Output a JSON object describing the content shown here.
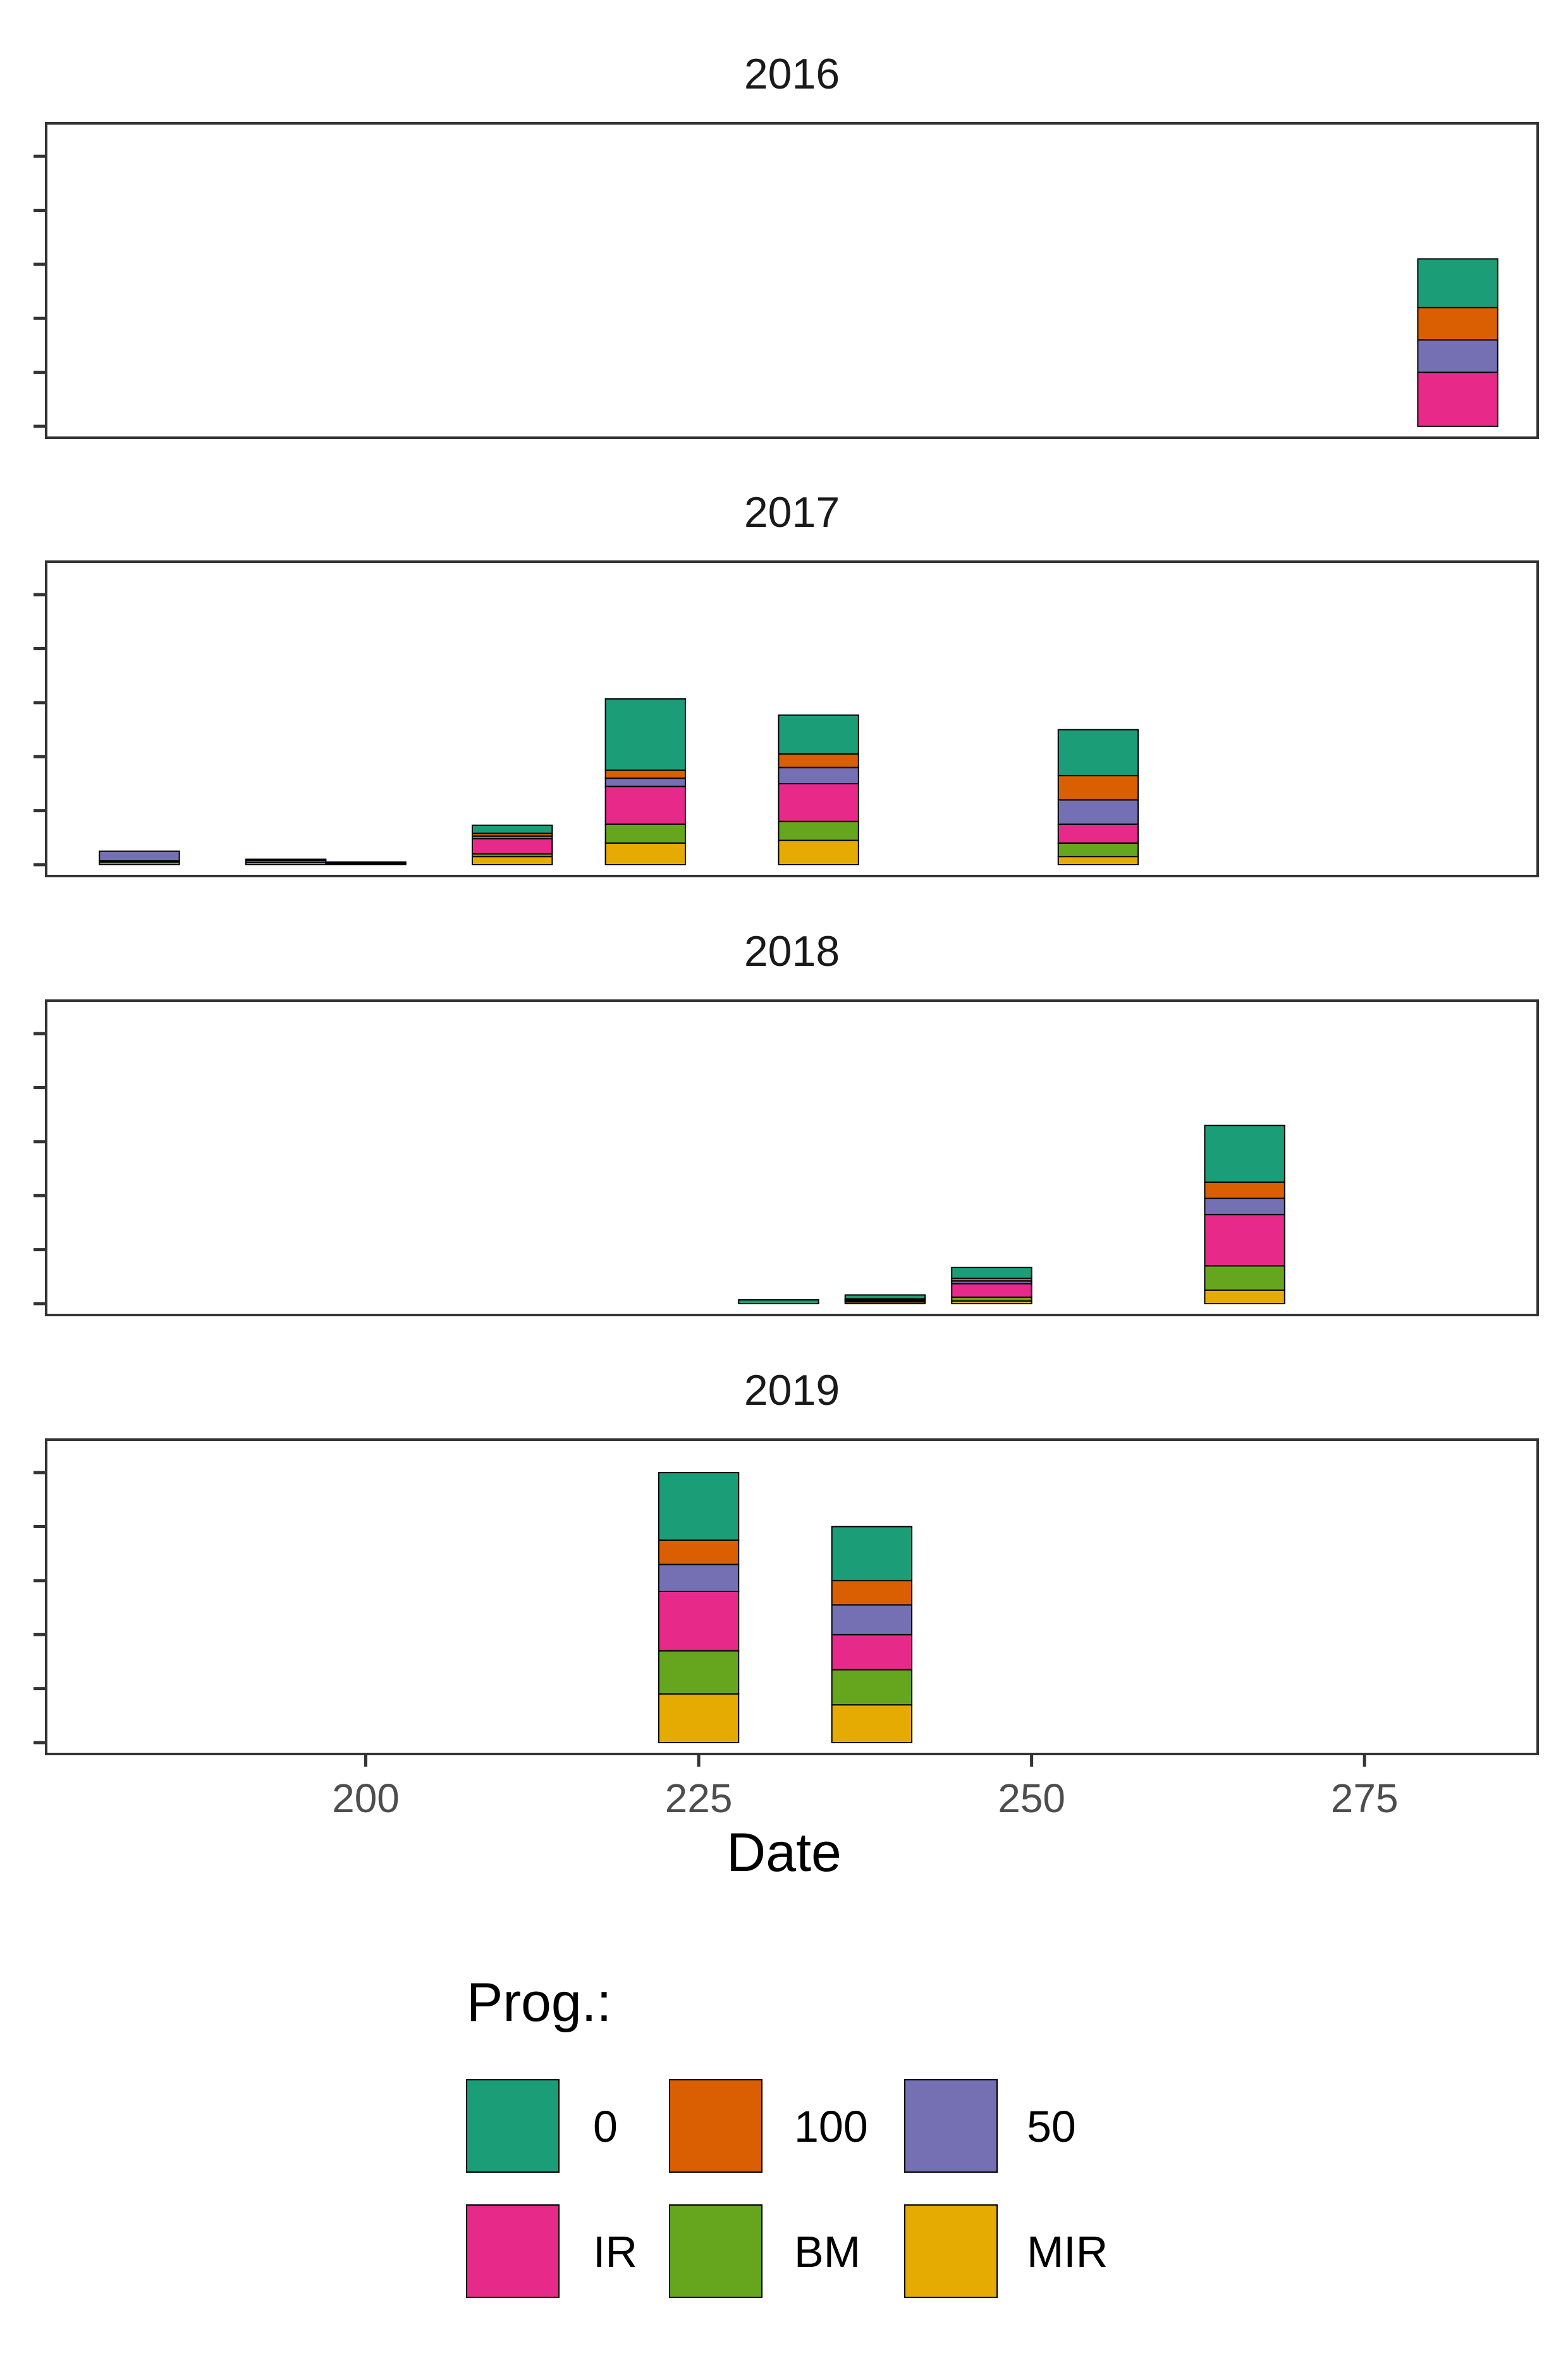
{
  "chart_data": {
    "type": "bar",
    "stacked": true,
    "facet_by": "year",
    "xlabel": "Date",
    "ylabel": "",
    "y_tick_labels_shown": false,
    "x_ticks": [
      200,
      225,
      250,
      275
    ],
    "xlim": [
      176,
      288
    ],
    "ylim": [
      0,
      5.4
    ],
    "y_tick_count": 6,
    "grid": false,
    "legend": {
      "title": "Prog.:",
      "placement": "bottom",
      "entries": [
        {
          "name": "0",
          "color": "#1b9e77"
        },
        {
          "name": "100",
          "color": "#d95f02"
        },
        {
          "name": "50",
          "color": "#7570b3"
        },
        {
          "name": "IR",
          "color": "#e7298a"
        },
        {
          "name": "BM",
          "color": "#66a61e"
        },
        {
          "name": "MIR",
          "color": "#e6ab02"
        }
      ]
    },
    "stack_order_bottom_to_top": [
      "MIR",
      "BM",
      "IR",
      "50",
      "100",
      "0"
    ],
    "bar_width_days": 6,
    "panels": [
      {
        "title": "2016",
        "bars": [
          {
            "x": 282,
            "MIR": 0,
            "BM": 0,
            "IR": 1.0,
            "50": 0.6,
            "100": 0.6,
            "0": 0.9
          }
        ]
      },
      {
        "title": "2017",
        "bars": [
          {
            "x": 183,
            "MIR": 0,
            "BM": 0.05,
            "IR": 0.02,
            "50": 0.18,
            "100": 0,
            "0": 0
          },
          {
            "x": 194,
            "MIR": 0.04,
            "BM": 0.04,
            "IR": 0.01,
            "50": 0.01,
            "100": 0,
            "0": 0
          },
          {
            "x": 200,
            "MIR": 0.02,
            "BM": 0.01,
            "IR": 0.01,
            "50": 0.01,
            "100": 0,
            "0": 0
          },
          {
            "x": 211,
            "MIR": 0.15,
            "BM": 0.05,
            "IR": 0.28,
            "50": 0.05,
            "100": 0.05,
            "0": 0.15
          },
          {
            "x": 221,
            "MIR": 0.4,
            "BM": 0.35,
            "IR": 0.7,
            "50": 0.15,
            "100": 0.15,
            "0": 1.32
          },
          {
            "x": 234,
            "MIR": 0.45,
            "BM": 0.35,
            "IR": 0.7,
            "50": 0.3,
            "100": 0.25,
            "0": 0.72
          },
          {
            "x": 255,
            "MIR": 0.15,
            "BM": 0.25,
            "IR": 0.35,
            "50": 0.45,
            "100": 0.45,
            "0": 0.85
          }
        ]
      },
      {
        "title": "2018",
        "bars": [
          {
            "x": 231,
            "MIR": 0,
            "BM": 0,
            "IR": 0,
            "50": 0,
            "100": 0,
            "0": 0.07
          },
          {
            "x": 239,
            "MIR": 0.03,
            "BM": 0.02,
            "IR": 0.02,
            "50": 0.02,
            "100": 0,
            "0": 0.07
          },
          {
            "x": 247,
            "MIR": 0.05,
            "BM": 0.07,
            "IR": 0.25,
            "50": 0.05,
            "100": 0.05,
            "0": 0.2
          },
          {
            "x": 266,
            "MIR": 0.25,
            "BM": 0.45,
            "IR": 0.95,
            "50": 0.3,
            "100": 0.3,
            "0": 1.05
          }
        ]
      },
      {
        "title": "2019",
        "bars": [
          {
            "x": 225,
            "MIR": 0.9,
            "BM": 0.8,
            "IR": 1.1,
            "50": 0.5,
            "100": 0.45,
            "0": 1.25
          },
          {
            "x": 238,
            "MIR": 0.7,
            "BM": 0.65,
            "IR": 0.65,
            "50": 0.55,
            "100": 0.45,
            "0": 1.0
          }
        ]
      }
    ]
  }
}
